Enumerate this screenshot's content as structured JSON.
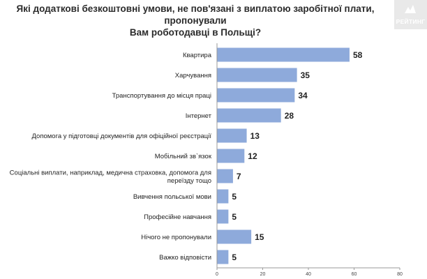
{
  "title_line1": "Які додаткові безкоштовні умови, не пов'язані з виплатою заробітної плати, пропонували",
  "title_line2": "Вам роботодавці в Польщі?",
  "logo": {
    "text": "РЕЙТИНГ",
    "bg": "#e9e9e9"
  },
  "chart_data": {
    "type": "bar",
    "orientation": "horizontal",
    "title": "Які додаткові безкоштовні умови, не пов'язані з виплатою заробітної плати, пропонували Вам роботодавці в Польщі?",
    "categories": [
      [
        "Квартира"
      ],
      [
        "Харчування"
      ],
      [
        "Транспортування до місця праці"
      ],
      [
        "Інтернет"
      ],
      [
        "Допомога у підготовці документів для офіційної реєстрації"
      ],
      [
        "Мобільний зв`язок"
      ],
      [
        "Соціальні виплати, наприклад, медична страховка, допомога для",
        "переїзду тощо"
      ],
      [
        "Вивчення польської мови"
      ],
      [
        "Професійне навчання"
      ],
      [
        "Нічого не пропонували"
      ],
      [
        "Важко відповісти"
      ]
    ],
    "values": [
      58,
      35,
      34,
      28,
      13,
      12,
      7,
      5,
      5,
      15,
      5
    ],
    "xlim": [
      0,
      80
    ],
    "xticks": [
      0,
      20,
      40,
      60,
      80
    ],
    "bar_color": "#8eaadb",
    "grid": false
  }
}
